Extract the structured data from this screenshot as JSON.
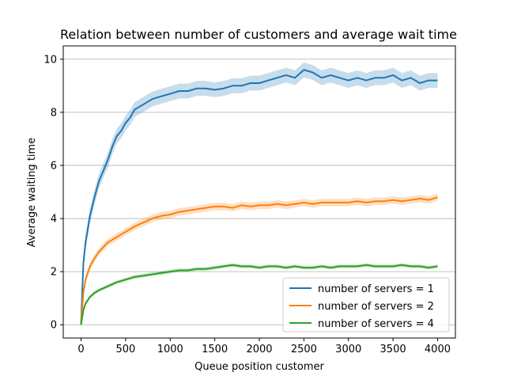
{
  "chart_data": {
    "type": "line",
    "title": "Relation between number of customers and average wait time",
    "xlabel": "Queue position customer",
    "ylabel": "Average waiting time",
    "xlim": [
      -200,
      4200
    ],
    "ylim": [
      -0.5,
      10.5
    ],
    "xticks": [
      0,
      500,
      1000,
      1500,
      2000,
      2500,
      3000,
      3500,
      4000
    ],
    "yticks": [
      0,
      2,
      4,
      6,
      8,
      10
    ],
    "grid": "y",
    "legend_position": "lower-right",
    "series": [
      {
        "name": "number of servers =  1",
        "color": "#1f77b4",
        "band": 0.28,
        "x": [
          0,
          25,
          50,
          100,
          150,
          200,
          250,
          300,
          350,
          400,
          450,
          500,
          550,
          600,
          650,
          700,
          800,
          900,
          1000,
          1100,
          1200,
          1300,
          1400,
          1500,
          1600,
          1700,
          1800,
          1900,
          2000,
          2100,
          2200,
          2300,
          2400,
          2500,
          2600,
          2700,
          2800,
          2900,
          3000,
          3100,
          3200,
          3300,
          3400,
          3500,
          3600,
          3700,
          3800,
          3900,
          4000
        ],
        "y": [
          0,
          2.3,
          3.1,
          4.1,
          4.8,
          5.4,
          5.8,
          6.2,
          6.7,
          7.1,
          7.3,
          7.6,
          7.8,
          8.1,
          8.2,
          8.3,
          8.5,
          8.6,
          8.7,
          8.8,
          8.8,
          8.9,
          8.9,
          8.85,
          8.9,
          9.0,
          9.0,
          9.1,
          9.1,
          9.2,
          9.3,
          9.4,
          9.3,
          9.6,
          9.5,
          9.3,
          9.4,
          9.3,
          9.2,
          9.3,
          9.2,
          9.3,
          9.3,
          9.4,
          9.2,
          9.3,
          9.1,
          9.2,
          9.2
        ]
      },
      {
        "name": "number of servers =  2",
        "color": "#ff7f0e",
        "band": 0.14,
        "x": [
          0,
          25,
          50,
          100,
          150,
          200,
          300,
          400,
          500,
          600,
          700,
          800,
          900,
          1000,
          1100,
          1200,
          1300,
          1400,
          1500,
          1600,
          1700,
          1800,
          1900,
          2000,
          2100,
          2200,
          2300,
          2400,
          2500,
          2600,
          2700,
          2800,
          2900,
          3000,
          3100,
          3200,
          3300,
          3400,
          3500,
          3600,
          3700,
          3800,
          3900,
          4000
        ],
        "y": [
          0,
          1.2,
          1.7,
          2.2,
          2.5,
          2.75,
          3.1,
          3.3,
          3.5,
          3.7,
          3.85,
          4.0,
          4.1,
          4.15,
          4.25,
          4.3,
          4.35,
          4.4,
          4.45,
          4.45,
          4.4,
          4.5,
          4.45,
          4.5,
          4.5,
          4.55,
          4.5,
          4.55,
          4.6,
          4.55,
          4.6,
          4.6,
          4.6,
          4.6,
          4.65,
          4.6,
          4.65,
          4.65,
          4.7,
          4.65,
          4.7,
          4.75,
          4.7,
          4.8
        ]
      },
      {
        "name": "number of servers =  4",
        "color": "#2ca02c",
        "band": 0.07,
        "x": [
          0,
          25,
          50,
          100,
          150,
          200,
          300,
          400,
          500,
          600,
          700,
          800,
          900,
          1000,
          1100,
          1200,
          1300,
          1400,
          1500,
          1600,
          1700,
          1800,
          1900,
          2000,
          2100,
          2200,
          2300,
          2400,
          2500,
          2600,
          2700,
          2800,
          2900,
          3000,
          3100,
          3200,
          3300,
          3400,
          3500,
          3600,
          3700,
          3800,
          3900,
          4000
        ],
        "y": [
          0,
          0.55,
          0.8,
          1.05,
          1.2,
          1.3,
          1.45,
          1.6,
          1.7,
          1.8,
          1.85,
          1.9,
          1.95,
          2.0,
          2.05,
          2.05,
          2.1,
          2.1,
          2.15,
          2.2,
          2.25,
          2.2,
          2.2,
          2.15,
          2.2,
          2.2,
          2.15,
          2.2,
          2.15,
          2.15,
          2.2,
          2.15,
          2.2,
          2.2,
          2.2,
          2.25,
          2.2,
          2.2,
          2.2,
          2.25,
          2.2,
          2.2,
          2.15,
          2.2
        ]
      }
    ]
  }
}
